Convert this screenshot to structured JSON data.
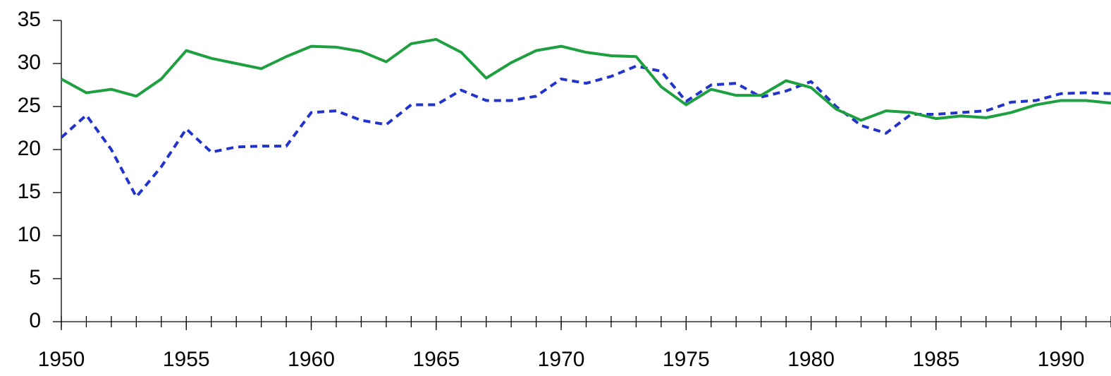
{
  "chart_data": {
    "type": "line",
    "x": [
      1950,
      1951,
      1952,
      1953,
      1954,
      1955,
      1956,
      1957,
      1958,
      1959,
      1960,
      1961,
      1962,
      1963,
      1964,
      1965,
      1966,
      1967,
      1968,
      1969,
      1970,
      1971,
      1972,
      1973,
      1974,
      1975,
      1976,
      1977,
      1978,
      1979,
      1980,
      1981,
      1982,
      1983,
      1984,
      1985,
      1986,
      1987,
      1988,
      1989,
      1990,
      1991,
      1992
    ],
    "series": [
      {
        "color": "#1fa040",
        "dash": false,
        "values": [
          28.2,
          26.6,
          27.0,
          26.2,
          28.2,
          31.5,
          30.6,
          30.0,
          29.4,
          30.8,
          32.0,
          31.9,
          31.4,
          30.2,
          32.3,
          32.8,
          31.3,
          28.3,
          30.1,
          31.5,
          32.0,
          31.3,
          30.9,
          30.8,
          27.3,
          25.2,
          27.0,
          26.3,
          26.3,
          28.0,
          27.2,
          24.7,
          23.4,
          24.5,
          24.3,
          23.6,
          23.9,
          23.7,
          24.3,
          25.2,
          25.7,
          25.7,
          25.4
        ]
      },
      {
        "color": "#2233cc",
        "dash": true,
        "values": [
          21.4,
          24.0,
          20.0,
          14.5,
          18.0,
          22.4,
          19.7,
          20.3,
          20.4,
          20.4,
          24.3,
          24.5,
          23.4,
          22.9,
          25.2,
          25.2,
          26.9,
          25.7,
          25.7,
          26.2,
          28.2,
          27.7,
          28.5,
          29.7,
          29.1,
          25.6,
          27.5,
          27.7,
          26.1,
          26.8,
          27.9,
          25.0,
          22.8,
          21.9,
          24.1,
          24.1,
          24.3,
          24.5,
          25.5,
          25.7,
          26.5,
          26.6,
          26.5
        ]
      }
    ],
    "xlim": [
      1950,
      1992
    ],
    "xticks": [
      1950,
      1955,
      1960,
      1965,
      1970,
      1975,
      1980,
      1985,
      1990
    ],
    "ylim": [
      0,
      35
    ],
    "yticks": [
      0,
      5,
      10,
      15,
      20,
      25,
      30,
      35
    ]
  }
}
